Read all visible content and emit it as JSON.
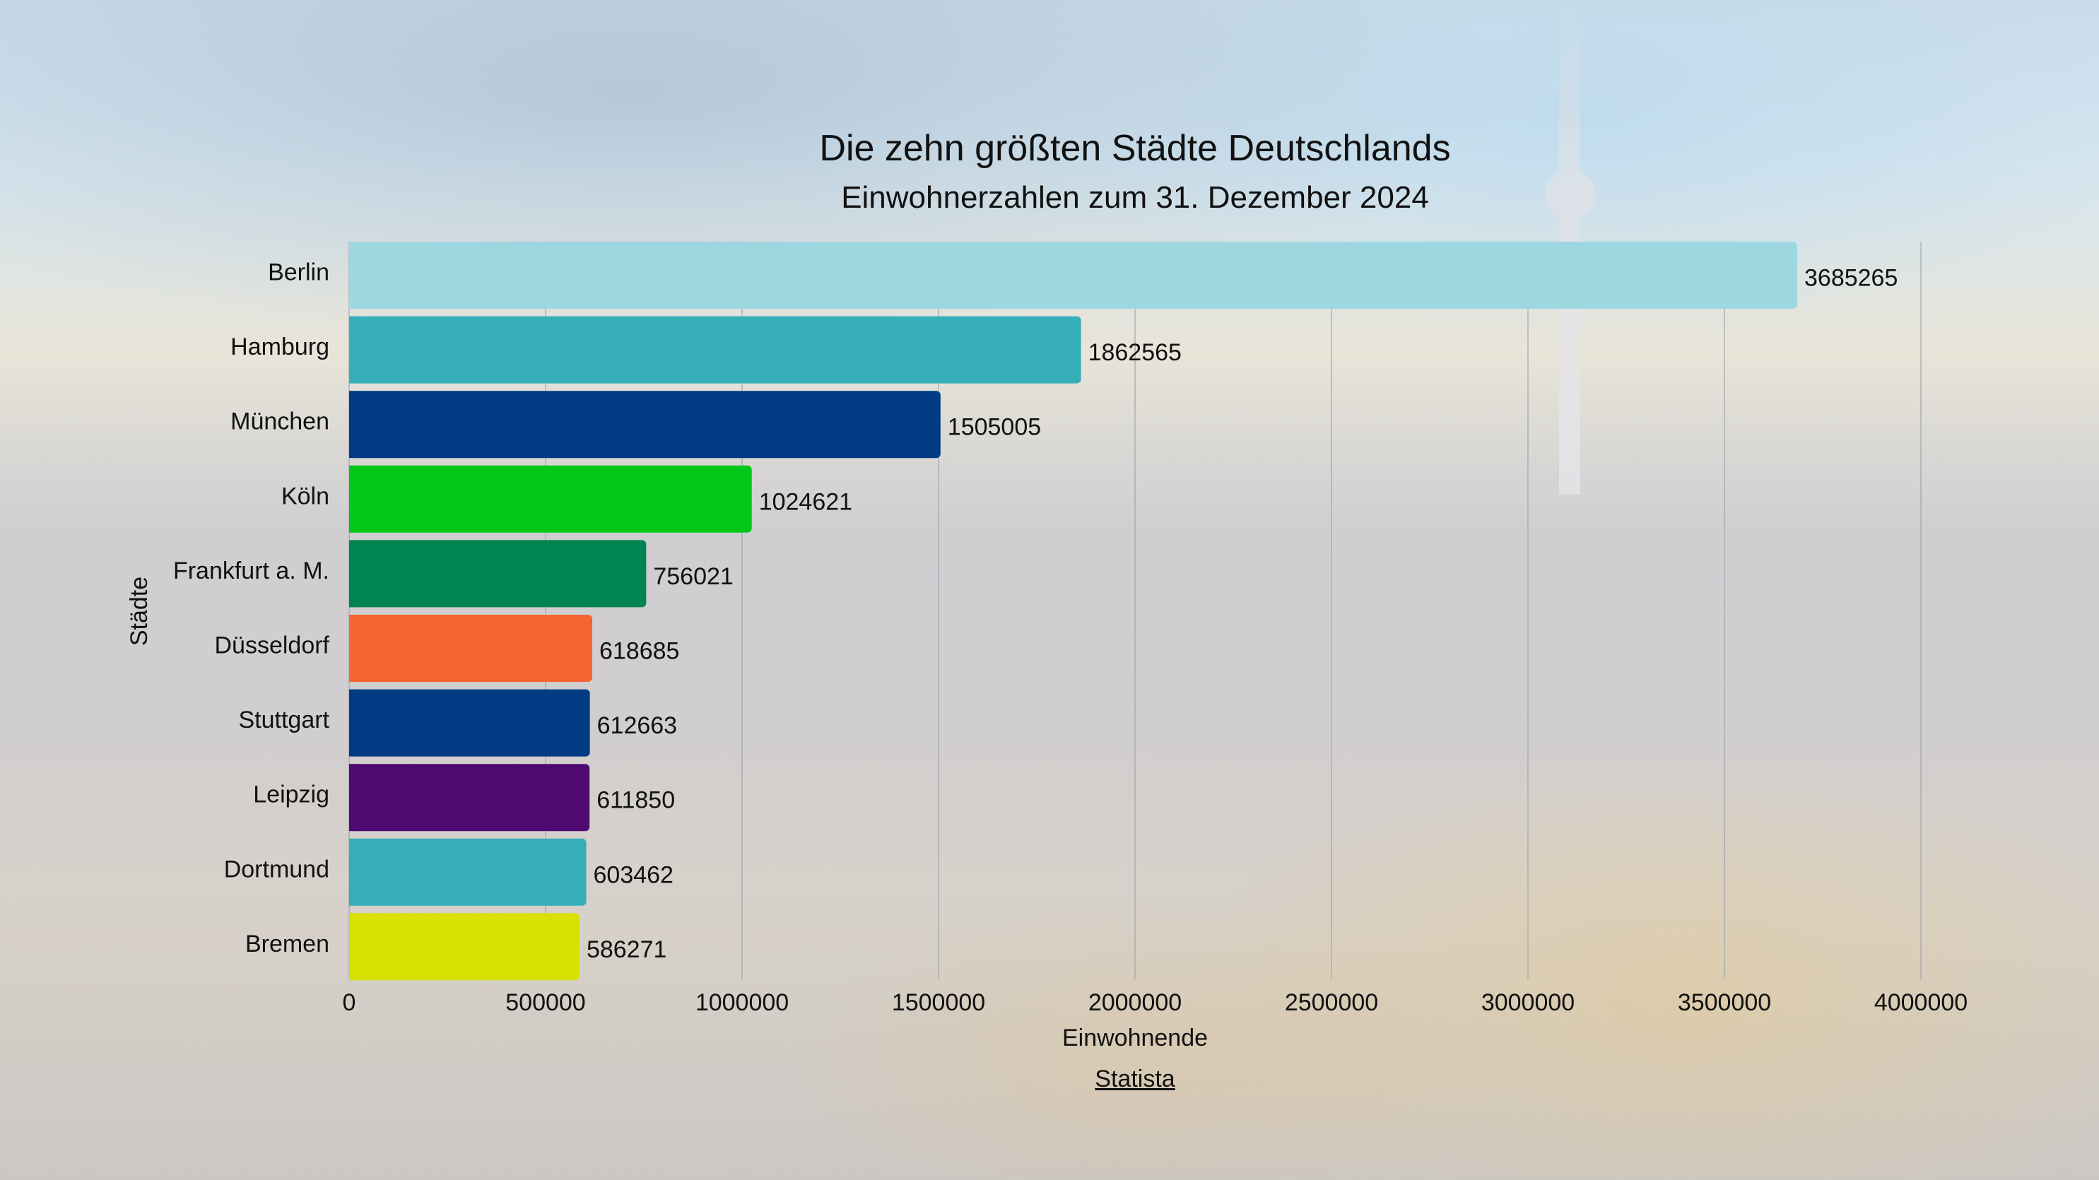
{
  "chart_data": {
    "type": "bar",
    "orientation": "horizontal",
    "title": "Die zehn größten Städte Deutschlands",
    "subtitle": "Einwohnerzahlen zum 31. Dezember 2024",
    "xlabel": "Einwohnende",
    "ylabel": "Städte",
    "xlim": [
      0,
      4000000
    ],
    "xticks": [
      0,
      500000,
      1000000,
      1500000,
      2000000,
      2500000,
      3000000,
      3500000,
      4000000
    ],
    "xtick_labels": [
      "0",
      "500000",
      "1000000",
      "1500000",
      "2000000",
      "2500000",
      "3000000",
      "3500000",
      "4000000"
    ],
    "grid": "vertical",
    "legend": "none",
    "categories": [
      "Berlin",
      "Hamburg",
      "München",
      "Köln",
      "Frankfurt a. M.",
      "Düsseldorf",
      "Stuttgart",
      "Leipzig",
      "Dortmund",
      "Bremen"
    ],
    "values": [
      3685265,
      1862565,
      1505005,
      1024621,
      756021,
      618685,
      612663,
      611850,
      603462,
      586271
    ],
    "value_labels": [
      "3685265",
      "1862565",
      "1505005",
      "1024621",
      "756021",
      "618685",
      "612663",
      "611850",
      "603462",
      "586271"
    ],
    "colors": [
      "#9dd7df",
      "#35aeb7",
      "#003b84",
      "#00c718",
      "#008451",
      "#f56431",
      "#003b84",
      "#4f0a72",
      "#35aeb7",
      "#d7e000"
    ]
  },
  "source": {
    "label": "Statista"
  }
}
